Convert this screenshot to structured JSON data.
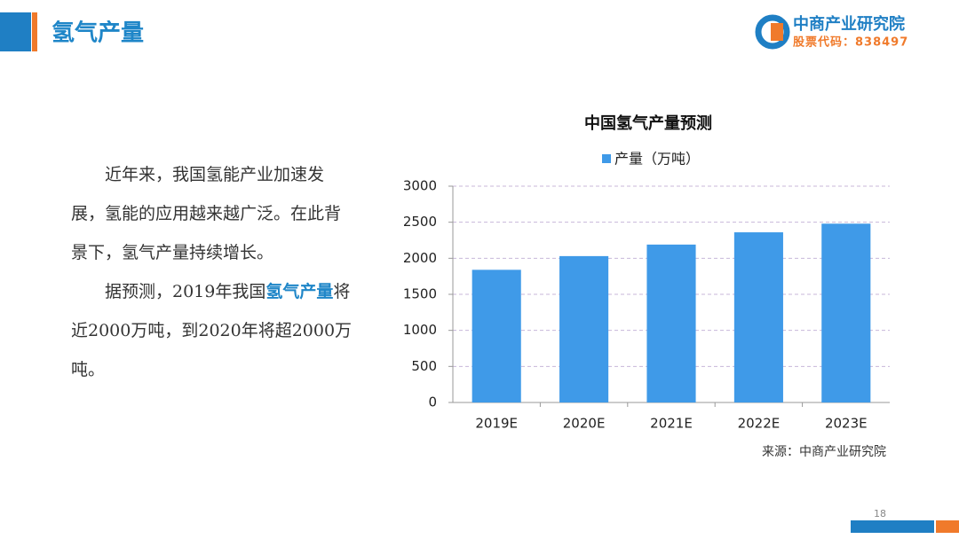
{
  "header": {
    "title": "氢气产量",
    "logo_name": "中商产业研究院",
    "logo_code": "股票代码：838497"
  },
  "body": {
    "paragraph_1": "近年来，我国氢能产业加速发展，氢能的应用越来越广泛。在此背景下，氢气产量持续增长。",
    "paragraph_2": [
      "据预测，2019年我国",
      "氢气产量",
      "将近2000万吨，到2020年将超2000万吨。"
    ]
  },
  "chart_data": {
    "type": "bar",
    "title": "中国氢气产量预测",
    "categories": [
      "2019E",
      "2020E",
      "2021E",
      "2022E",
      "2023E"
    ],
    "series": [
      {
        "name": "产量（万吨）",
        "color": "#3f9ae8",
        "values": [
          1840,
          2030,
          2190,
          2360,
          2480
        ]
      }
    ],
    "ylim": [
      0,
      3000
    ],
    "yticks": [
      0,
      500,
      1000,
      1500,
      2000,
      2500,
      3000
    ],
    "grid": true,
    "legend": "top"
  },
  "source": "来源：中商产业研究院",
  "page_number": "18"
}
